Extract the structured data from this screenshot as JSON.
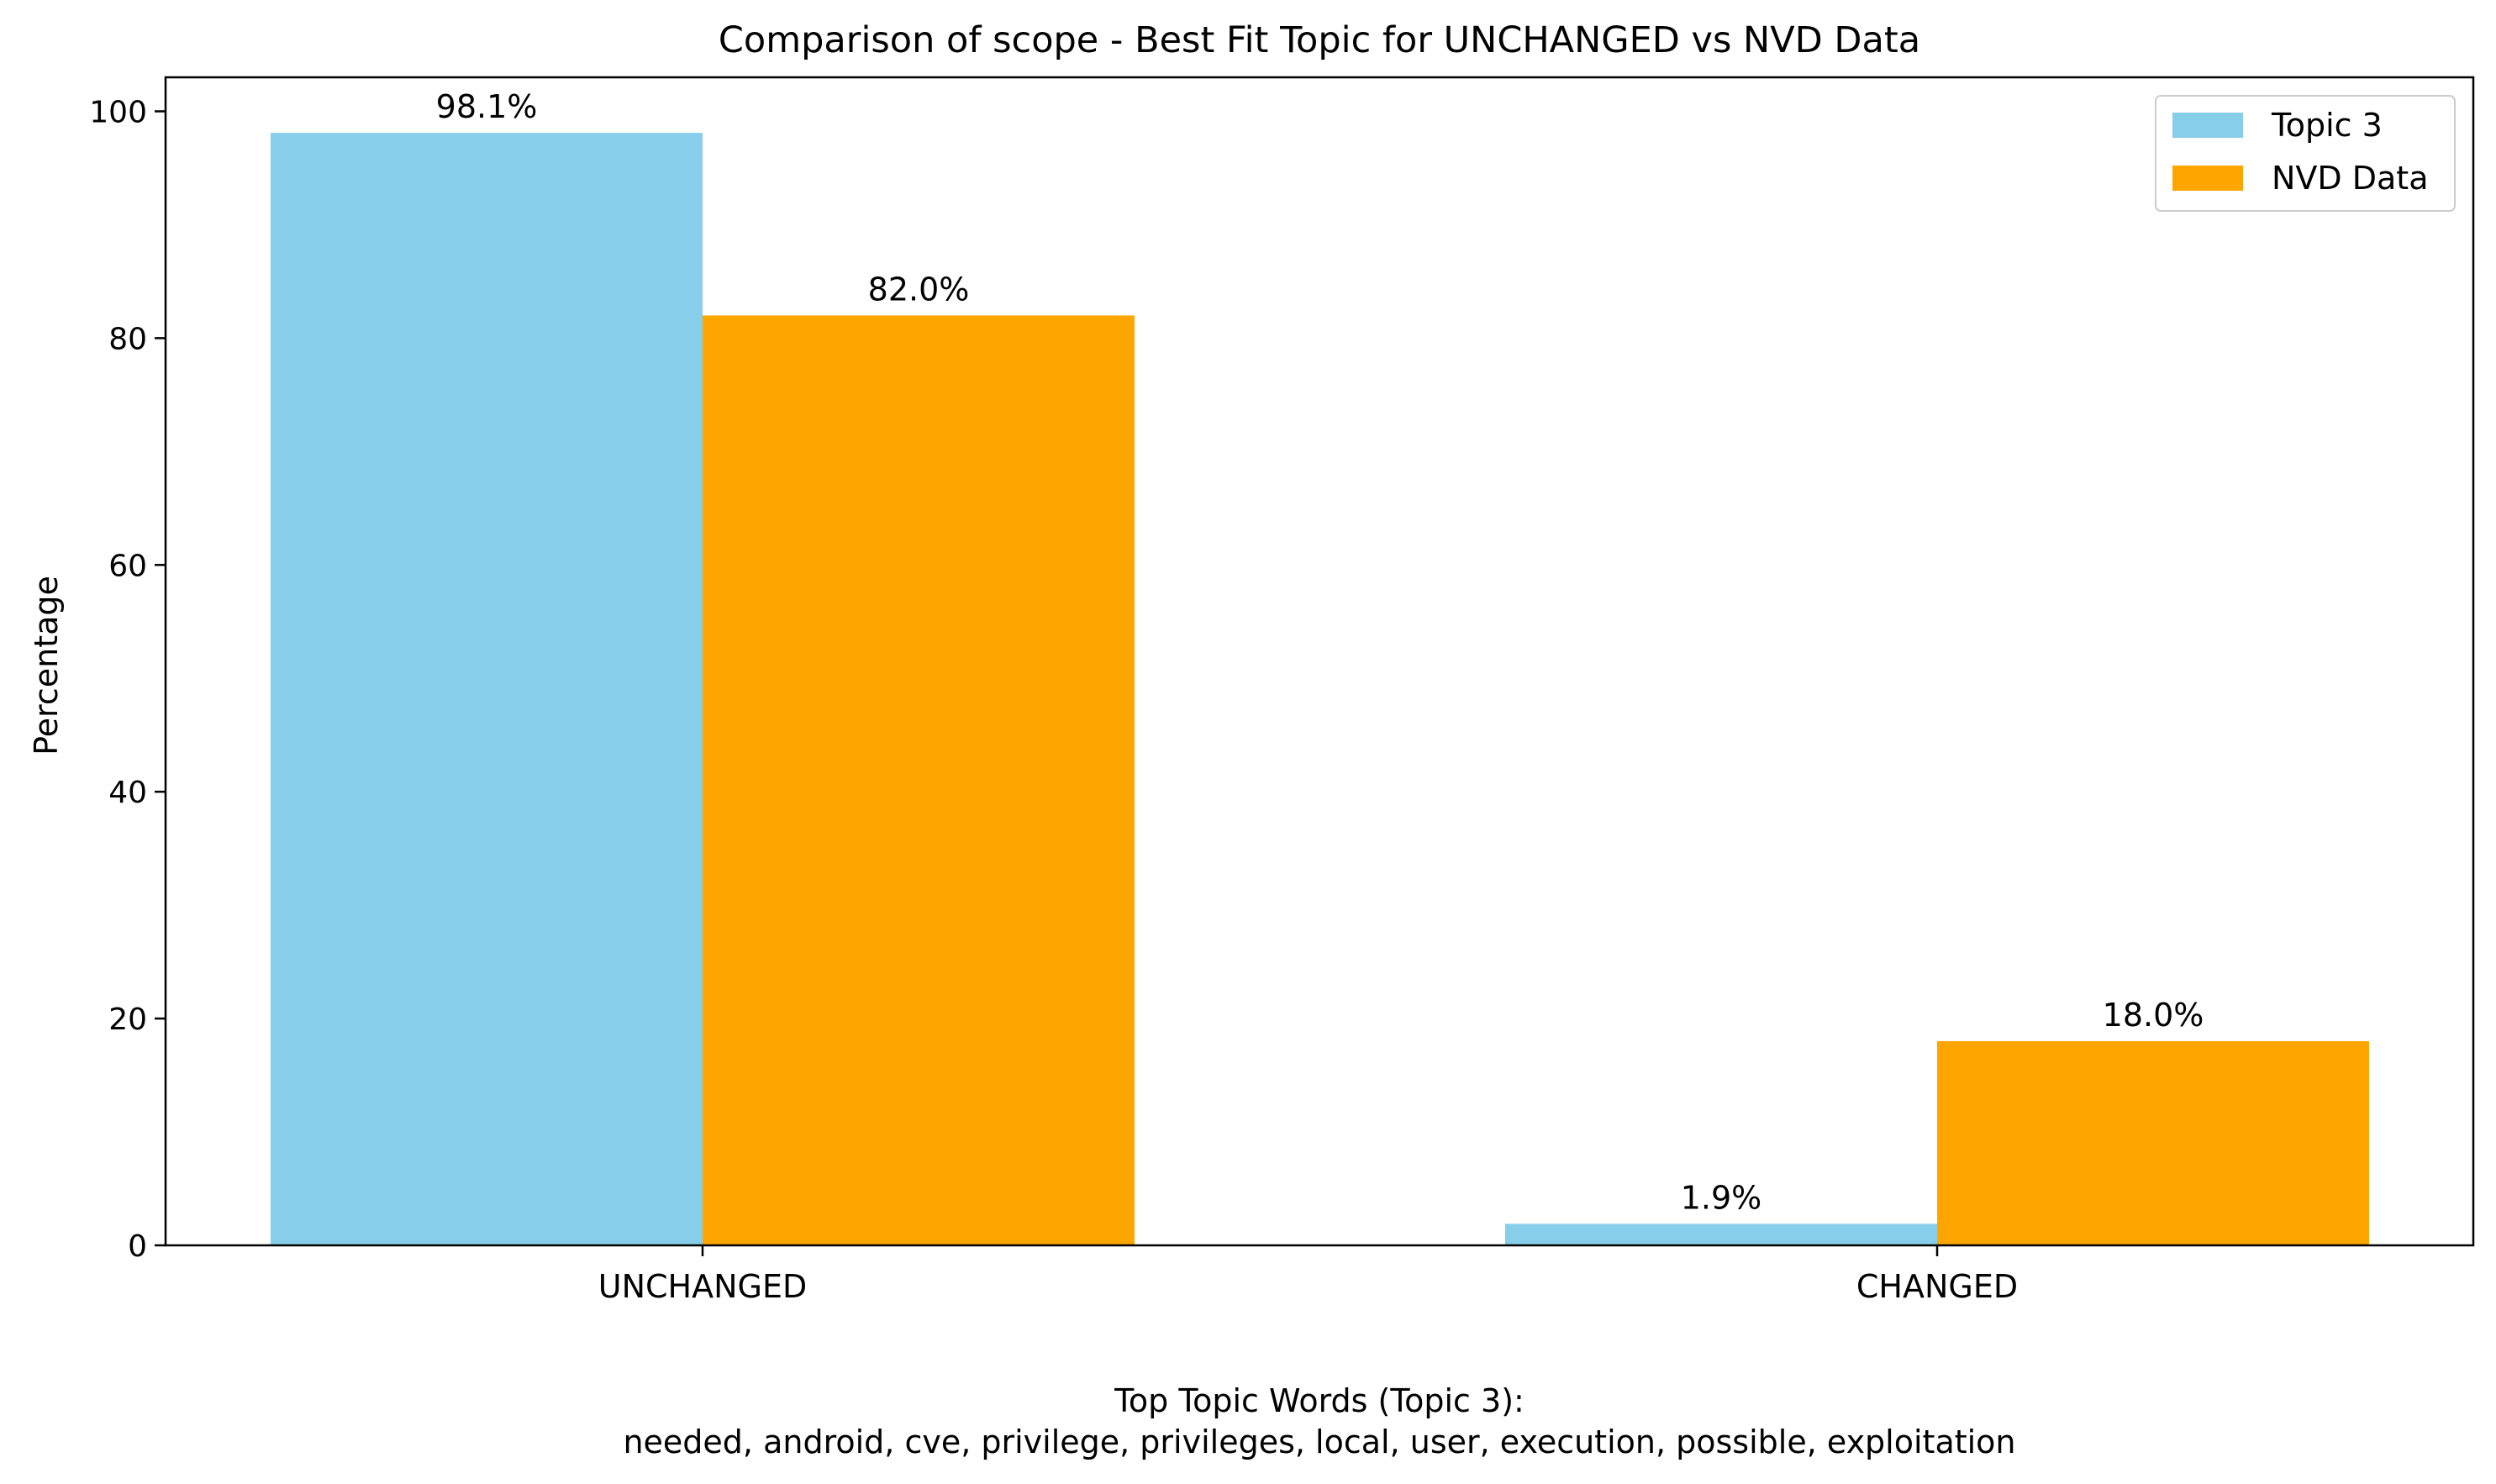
{
  "chart_data": {
    "type": "bar",
    "title": "Comparison of scope - Best Fit Topic for UNCHANGED vs NVD Data",
    "xlabel": "",
    "ylabel": "Percentage",
    "categories": [
      "UNCHANGED",
      "CHANGED"
    ],
    "series": [
      {
        "name": "Topic 3",
        "values": [
          98.1,
          1.9
        ],
        "labels": [
          "98.1%",
          "1.9%"
        ],
        "color": "#87CEEB"
      },
      {
        "name": "NVD Data",
        "values": [
          82.0,
          18.0
        ],
        "labels": [
          "82.0%",
          "18.0%"
        ],
        "color": "#FFA500"
      }
    ],
    "ylim": [
      0,
      103
    ],
    "yticks": [
      0,
      20,
      40,
      60,
      80,
      100
    ],
    "grid": false,
    "legend": "top-right",
    "footnote": {
      "heading": "Top Topic Words (Topic 3):",
      "words": "needed,  android,  cve,  privilege,  privileges,  local,  user,  execution,  possible,  exploitation"
    }
  }
}
